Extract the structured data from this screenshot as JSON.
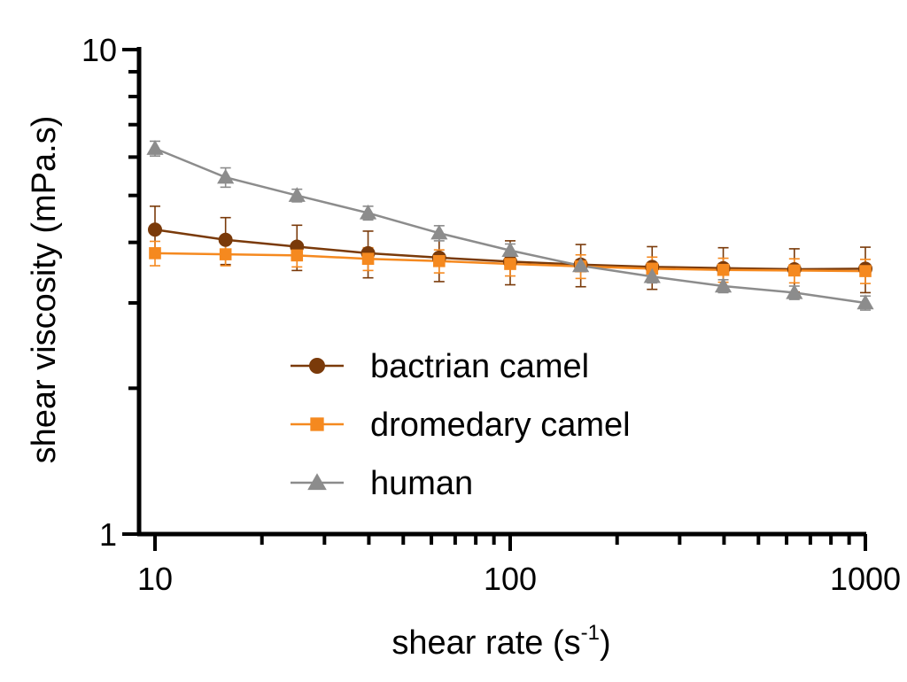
{
  "chart_data": {
    "type": "line",
    "title": "",
    "xlabel": "shear rate (s",
    "xlabel_sup": "-1",
    "xlabel_close": ")",
    "ylabel": "shear viscosity (mPa.s)",
    "x_scale": "log",
    "y_scale": "log",
    "xlim": [
      9,
      1000
    ],
    "ylim": [
      1,
      10
    ],
    "x_ticks": [
      {
        "value": 10,
        "label": "10"
      },
      {
        "value": 100,
        "label": "100"
      },
      {
        "value": 1000,
        "label": "1000"
      }
    ],
    "y_ticks": [
      {
        "value": 1,
        "label": "1"
      },
      {
        "value": 10,
        "label": "10"
      }
    ],
    "grid": false,
    "legend_position": "bottom-center",
    "x": [
      10,
      15.8,
      25.1,
      39.8,
      63.1,
      100,
      158,
      251,
      398,
      631,
      1000
    ],
    "series": [
      {
        "name": "bactrian camel",
        "color": "#7a3a0a",
        "marker": "circle",
        "values": [
          4.25,
          4.05,
          3.92,
          3.8,
          3.72,
          3.65,
          3.6,
          3.56,
          3.54,
          3.52,
          3.53
        ],
        "errors": [
          0.5,
          0.45,
          0.42,
          0.42,
          0.4,
          0.38,
          0.36,
          0.36,
          0.36,
          0.36,
          0.38
        ]
      },
      {
        "name": "dromedary camel",
        "color": "#f5891f",
        "marker": "square",
        "values": [
          3.8,
          3.78,
          3.76,
          3.7,
          3.66,
          3.61,
          3.57,
          3.53,
          3.51,
          3.5,
          3.49
        ],
        "errors": [
          0.22,
          0.2,
          0.2,
          0.2,
          0.2,
          0.2,
          0.2,
          0.2,
          0.2,
          0.2,
          0.2
        ]
      },
      {
        "name": "human",
        "color": "#8c8c8c",
        "marker": "triangle",
        "values": [
          6.25,
          5.45,
          5.0,
          4.6,
          4.18,
          3.85,
          3.58,
          3.4,
          3.25,
          3.15,
          3.0
        ],
        "errors": [
          0.22,
          0.25,
          0.15,
          0.15,
          0.15,
          0.12,
          0.1,
          0.1,
          0.1,
          0.1,
          0.1
        ]
      }
    ]
  }
}
